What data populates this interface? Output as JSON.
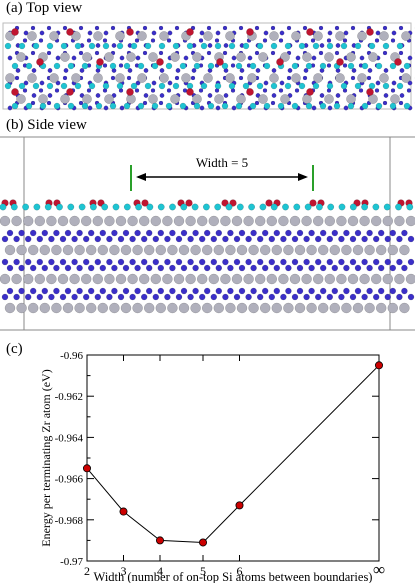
{
  "panels": {
    "a": {
      "label": "(a) Top view"
    },
    "b": {
      "label": "(b) Side view",
      "annotation": "Width = 5"
    },
    "c": {
      "label": "(c)"
    }
  },
  "atom_colors": {
    "zr": "#b0b0bc",
    "b": "#3b2fc8",
    "si": "#1ec4d2",
    "o": "#c01530",
    "marker": "#2aa02a"
  },
  "chart_data": {
    "type": "line",
    "title": "",
    "xlabel": "Width (number of on-top Si atoms between boundaries)",
    "ylabel": "Energy per terminating Zr atom (eV)",
    "x_ticks": [
      "2",
      "3",
      "4",
      "5",
      "6",
      "∞"
    ],
    "y_ticks": [
      "-0.96",
      "-0.962",
      "-0.964",
      "-0.966",
      "-0.968",
      "-0.97"
    ],
    "ylim": [
      -0.97,
      -0.96
    ],
    "grid": false,
    "series": [
      {
        "marker_color": "#cc0000",
        "points": [
          {
            "x": "2",
            "y": -0.9655
          },
          {
            "x": "3",
            "y": -0.9676
          },
          {
            "x": "4",
            "y": -0.969
          },
          {
            "x": "5",
            "y": -0.9691
          },
          {
            "x": "6",
            "y": -0.9673
          },
          {
            "x": "∞",
            "y": -0.9605
          }
        ]
      }
    ]
  }
}
